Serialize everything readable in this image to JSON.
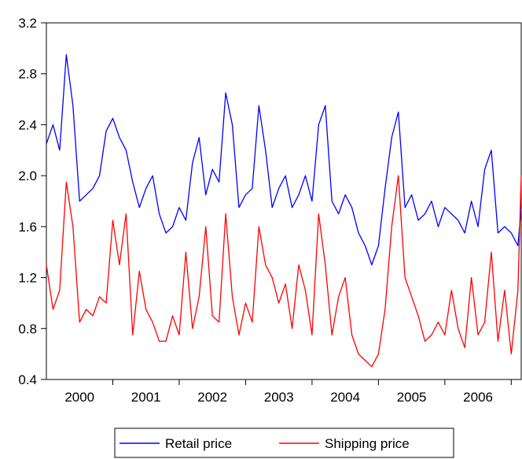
{
  "chart_data": {
    "type": "line",
    "title": "",
    "xlabel": "",
    "ylabel": "",
    "ylim": [
      0.4,
      3.2
    ],
    "yticks": [
      "0.4",
      "0.8",
      "1.2",
      "1.6",
      "2.0",
      "2.4",
      "2.8",
      "3.2"
    ],
    "xlim": [
      1999.5,
      2006.65
    ],
    "xticks": [
      "2000",
      "2001",
      "2002",
      "2003",
      "2004",
      "2005",
      "2006"
    ],
    "grid": false,
    "legend_position": "bottom-center",
    "x": [
      1999.5,
      1999.6,
      1999.7,
      1999.8,
      1999.9,
      2000.0,
      2000.1,
      2000.2,
      2000.3,
      2000.4,
      2000.5,
      2000.6,
      2000.7,
      2000.8,
      2000.9,
      2001.0,
      2001.1,
      2001.2,
      2001.3,
      2001.4,
      2001.5,
      2001.6,
      2001.7,
      2001.8,
      2001.9,
      2002.0,
      2002.1,
      2002.2,
      2002.3,
      2002.4,
      2002.5,
      2002.6,
      2002.7,
      2002.8,
      2002.9,
      2003.0,
      2003.1,
      2003.2,
      2003.3,
      2003.4,
      2003.5,
      2003.6,
      2003.7,
      2003.8,
      2003.9,
      2004.0,
      2004.1,
      2004.2,
      2004.3,
      2004.4,
      2004.5,
      2004.6,
      2004.7,
      2004.8,
      2004.9,
      2005.0,
      2005.1,
      2005.2,
      2005.3,
      2005.4,
      2005.5,
      2005.6,
      2005.7,
      2005.8,
      2005.9,
      2006.0,
      2006.1,
      2006.2,
      2006.3,
      2006.4,
      2006.5,
      2006.6,
      2006.65
    ],
    "series": [
      {
        "name": "Retail price",
        "color": "#0000ff",
        "values": [
          2.25,
          2.4,
          2.2,
          2.95,
          2.55,
          1.8,
          1.85,
          1.9,
          2.0,
          2.35,
          2.45,
          2.3,
          2.2,
          1.95,
          1.75,
          1.9,
          2.0,
          1.7,
          1.55,
          1.6,
          1.75,
          1.65,
          2.1,
          2.3,
          1.85,
          2.05,
          1.95,
          2.65,
          2.4,
          1.75,
          1.85,
          1.9,
          2.55,
          2.2,
          1.75,
          1.9,
          2.0,
          1.75,
          1.85,
          2.0,
          1.8,
          2.4,
          2.55,
          1.8,
          1.7,
          1.85,
          1.75,
          1.55,
          1.45,
          1.3,
          1.45,
          1.9,
          2.3,
          2.5,
          1.75,
          1.85,
          1.65,
          1.7,
          1.8,
          1.6,
          1.75,
          1.7,
          1.65,
          1.55,
          1.8,
          1.6,
          2.05,
          2.2,
          1.55,
          1.6,
          1.55,
          1.45,
          1.75
        ]
      },
      {
        "name": "Shipping price",
        "color": "#ff0000",
        "values": [
          1.3,
          0.95,
          1.1,
          1.95,
          1.6,
          0.85,
          0.95,
          0.9,
          1.05,
          1.0,
          1.65,
          1.3,
          1.7,
          0.75,
          1.25,
          0.95,
          0.85,
          0.7,
          0.7,
          0.9,
          0.75,
          1.4,
          0.8,
          1.05,
          1.6,
          0.9,
          0.85,
          1.7,
          1.05,
          0.75,
          1.0,
          0.85,
          1.6,
          1.3,
          1.2,
          1.0,
          1.15,
          0.8,
          1.3,
          1.1,
          0.75,
          1.7,
          1.3,
          0.75,
          1.05,
          1.2,
          0.75,
          0.6,
          0.55,
          0.5,
          0.6,
          0.95,
          1.6,
          2.0,
          1.2,
          1.05,
          0.9,
          0.7,
          0.75,
          0.85,
          0.75,
          1.1,
          0.8,
          0.65,
          1.2,
          0.75,
          0.85,
          1.4,
          0.7,
          1.1,
          0.6,
          1.1,
          2.0
        ]
      }
    ]
  }
}
